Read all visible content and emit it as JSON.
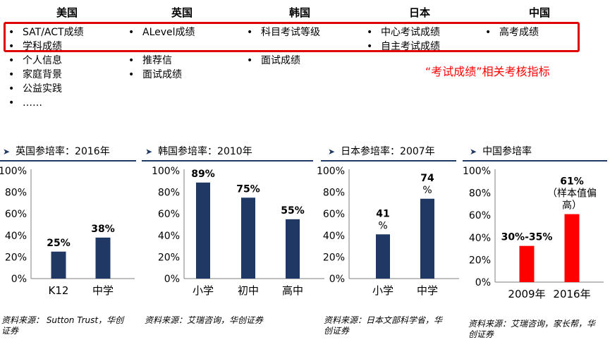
{
  "countries": [
    {
      "name": "美国",
      "items": [
        "SAT/ACT成绩",
        "学科成绩",
        "个人信息",
        "家庭背景",
        "公益实践",
        "……"
      ]
    },
    {
      "name": "英国",
      "items": [
        "ALevel成绩",
        "",
        "推荐信",
        "面试成绩"
      ]
    },
    {
      "name": "韩国",
      "items": [
        "科目考试等级",
        "",
        "面试成绩"
      ]
    },
    {
      "name": "日本",
      "items": [
        "中心考试成绩",
        "自主考试成绩"
      ]
    },
    {
      "name": "中国",
      "items": [
        "高考成绩"
      ]
    }
  ],
  "callout": "“考试成绩”相关考核指标",
  "colors": {
    "bar_navy": "#1f3864",
    "bar_red": "#ff0000",
    "highlight_border": "#e00000"
  },
  "chart_titles": [
    "英国参培率：2016年",
    "韩国参培率：2010年",
    "日本参培率：2007年",
    "中国参培率"
  ],
  "sources": [
    "资料来源： Sutton Trust，华创证券",
    "资料来源：艾瑞咨询，华创证券",
    "资料来源：日本文部科学省，华创证券",
    "资料来源：艾瑞咨询，家长帮，华创证券"
  ],
  "chart_data": [
    {
      "type": "bar",
      "title": "英国参培率：2016年",
      "categories": [
        "K12",
        "中学"
      ],
      "values": [
        25,
        38
      ],
      "data_labels": [
        "25%",
        "38%"
      ],
      "ylim": [
        0,
        100
      ],
      "yticks": [
        "0%",
        "20%",
        "40%",
        "60%",
        "80%",
        "100%"
      ],
      "bar_color": "#1f3864"
    },
    {
      "type": "bar",
      "title": "韩国参培率：2010年",
      "categories": [
        "小学",
        "初中",
        "高中"
      ],
      "values": [
        89,
        75,
        55
      ],
      "data_labels": [
        "89%",
        "75%",
        "55%"
      ],
      "ylim": [
        0,
        100
      ],
      "yticks": [
        "0%",
        "20%",
        "40%",
        "60%",
        "80%",
        "100%"
      ],
      "bar_color": "#1f3864"
    },
    {
      "type": "bar",
      "title": "日本参培率：2007年",
      "categories": [
        "小学",
        "中学"
      ],
      "values": [
        41,
        74
      ],
      "data_labels": [
        "41\n%",
        "74\n%"
      ],
      "ylim": [
        0,
        100
      ],
      "yticks": [
        "0%",
        "20%",
        "40%",
        "60%",
        "80%",
        "100%"
      ],
      "bar_color": "#1f3864"
    },
    {
      "type": "bar",
      "title": "中国参培率",
      "categories": [
        "2009年",
        "2016年"
      ],
      "values": [
        32.5,
        61
      ],
      "data_labels": [
        "30%-35%",
        "61%\n（样本值偏\n高）"
      ],
      "ylim": [
        0,
        100
      ],
      "yticks": [
        "0%",
        "20%",
        "40%",
        "60%",
        "80%",
        "100%"
      ],
      "bar_color": "#ff0000"
    }
  ]
}
